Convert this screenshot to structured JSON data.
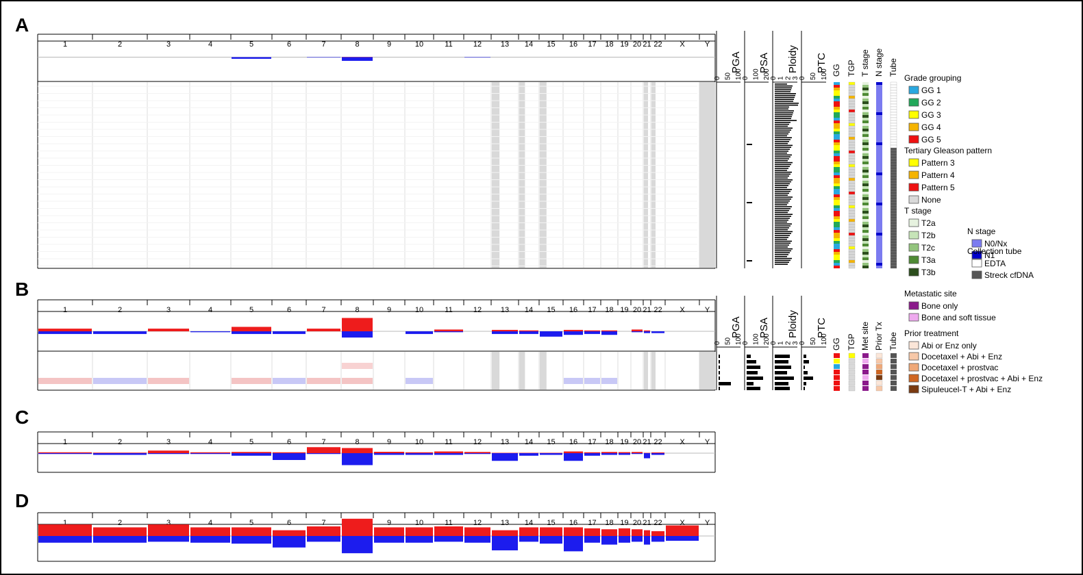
{
  "chromosomes": [
    "1",
    "2",
    "3",
    "4",
    "5",
    "6",
    "7",
    "8",
    "9",
    "10",
    "11",
    "12",
    "13",
    "14",
    "15",
    "16",
    "17",
    "18",
    "19",
    "20",
    "21",
    "22",
    "X",
    "Y"
  ],
  "panels": [
    {
      "id": "A",
      "letter": "A"
    },
    {
      "id": "B",
      "letter": "B"
    },
    {
      "id": "C",
      "letter": "C"
    },
    {
      "id": "D",
      "letter": "D"
    }
  ],
  "tracks": {
    "pga": {
      "label": "PGA",
      "ticks": [
        "0",
        "50",
        "100"
      ]
    },
    "psa": {
      "label": "PSA",
      "ticks": [
        "0",
        "100",
        "200"
      ]
    },
    "ploidy": {
      "label": "Ploidy",
      "ticks": [
        "0",
        "1",
        "2",
        "3"
      ]
    },
    "ptc": {
      "label": "PTC",
      "ticks": [
        "0",
        "50",
        "100"
      ]
    },
    "annotation_labels_A": [
      "GG",
      "TGP",
      "T stage",
      "N stage",
      "Tube"
    ],
    "annotation_labels_B": [
      "GG",
      "TGP",
      "Met site",
      "Prior Tx",
      "Tube"
    ]
  },
  "colors": {
    "gain": "#ee1c1c",
    "loss": "#1c1cee",
    "baseline": "#b8b8b8",
    "excluded_chrom": "#d9d9d9"
  },
  "legends_A": [
    {
      "title": "Grade grouping",
      "items": [
        {
          "label": "GG 1",
          "color": "#2aa8e0"
        },
        {
          "label": "GG 2",
          "color": "#22a85a"
        },
        {
          "label": "GG 3",
          "color": "#ffff00"
        },
        {
          "label": "GG 4",
          "color": "#f5b400"
        },
        {
          "label": "GG 5",
          "color": "#ee1111"
        }
      ]
    },
    {
      "title": "Tertiary Gleason pattern",
      "items": [
        {
          "label": "Pattern 3",
          "color": "#ffff00"
        },
        {
          "label": "Pattern 4",
          "color": "#f5b400"
        },
        {
          "label": "Pattern 5",
          "color": "#ee1111"
        },
        {
          "label": "None",
          "color": "#d9d9d9"
        }
      ]
    },
    {
      "title": "T stage",
      "items": [
        {
          "label": "T2a",
          "color": "#e6f2df"
        },
        {
          "label": "T2b",
          "color": "#c6e4b8"
        },
        {
          "label": "T2c",
          "color": "#93c47d"
        },
        {
          "label": "T3a",
          "color": "#4e8a34"
        },
        {
          "label": "T3b",
          "color": "#2b4e1c"
        }
      ]
    },
    {
      "title": "N stage",
      "items": [
        {
          "label": "N0/Nx",
          "color": "#7b7bf0"
        },
        {
          "label": "N1",
          "color": "#0000cc"
        }
      ]
    },
    {
      "title": "Collection tube",
      "items": [
        {
          "label": "EDTA",
          "color": "#ffffff"
        },
        {
          "label": "Streck cfDNA",
          "color": "#555555"
        }
      ]
    }
  ],
  "legends_B": [
    {
      "title": "Metastatic site",
      "items": [
        {
          "label": "Bone only",
          "color": "#8b1a8b"
        },
        {
          "label": "Bone and soft tissue",
          "color": "#eeaaee"
        }
      ]
    },
    {
      "title": "Prior treatment",
      "items": [
        {
          "label": "Abi or Enz only",
          "color": "#fbe6d8"
        },
        {
          "label": "Docetaxel + Abi + Enz",
          "color": "#f7c8a8"
        },
        {
          "label": "Docetaxel + prostvac",
          "color": "#efa878"
        },
        {
          "label": "Docetaxel + prostvac + Abi + Enz",
          "color": "#cf6622"
        },
        {
          "label": "Sipuleucel-T + Abi + Enz",
          "color": "#7a3a10"
        }
      ]
    }
  ],
  "chart_data": [
    {
      "type": "area",
      "panel": "A",
      "description_source": "summary CNA frequency profile (gain above, loss below baseline) plus per-sample heatmap",
      "ylim": [
        -1,
        1
      ],
      "gain": [
        0,
        0,
        0,
        0,
        0,
        0,
        0,
        0.01,
        0,
        0,
        0,
        0,
        0,
        0,
        0,
        0,
        0,
        0,
        0,
        0,
        0,
        0,
        0,
        0
      ],
      "loss": [
        0,
        0,
        0,
        0,
        0.08,
        0,
        0.02,
        0.18,
        0,
        0,
        0,
        0.02,
        0,
        0,
        0,
        0,
        0,
        0,
        0,
        0,
        0,
        0,
        0,
        0
      ],
      "excluded_chromosomes": [
        "13",
        "14",
        "15",
        "21",
        "22",
        "Y"
      ]
    },
    {
      "type": "area",
      "panel": "B",
      "ylim": [
        -1,
        1
      ],
      "gain": [
        0.15,
        0,
        0.15,
        0,
        0.25,
        0,
        0.15,
        0.75,
        0,
        0,
        0.1,
        0,
        0.08,
        0.05,
        0,
        0.08,
        0.05,
        0.05,
        0,
        0.1,
        0.05,
        0,
        0,
        0
      ],
      "loss": [
        0.15,
        0.15,
        0,
        0.05,
        0.15,
        0.15,
        0,
        0.35,
        0,
        0.15,
        0.05,
        0,
        0.15,
        0.15,
        0.3,
        0.2,
        0.15,
        0.2,
        0,
        0.05,
        0.1,
        0.1,
        0,
        0
      ],
      "excluded_chromosomes": [
        "13",
        "14",
        "15",
        "21",
        "22",
        "Y"
      ]
    },
    {
      "type": "area",
      "panel": "C",
      "ylim": [
        -1,
        1
      ],
      "gain": [
        0.05,
        0.03,
        0.15,
        0.05,
        0.07,
        0.05,
        0.35,
        0.3,
        0.08,
        0.05,
        0.1,
        0.07,
        0.02,
        0.02,
        0.02,
        0.1,
        0.05,
        0.07,
        0.06,
        0.07,
        0.02,
        0.04,
        0,
        0
      ],
      "loss": [
        0.05,
        0.1,
        0.05,
        0.05,
        0.15,
        0.4,
        0.05,
        0.7,
        0.1,
        0.1,
        0.1,
        0.05,
        0.45,
        0.15,
        0.1,
        0.45,
        0.15,
        0.1,
        0.1,
        0.05,
        0.3,
        0.1,
        0,
        0
      ]
    },
    {
      "type": "area",
      "panel": "D",
      "ylim": [
        -1,
        1
      ],
      "gain": [
        0.6,
        0.45,
        0.6,
        0.45,
        0.45,
        0.3,
        0.5,
        0.9,
        0.45,
        0.45,
        0.5,
        0.45,
        0.3,
        0.45,
        0.45,
        0.45,
        0.4,
        0.35,
        0.4,
        0.35,
        0.3,
        0.25,
        0.55,
        0
      ],
      "loss": [
        0.35,
        0.35,
        0.3,
        0.35,
        0.4,
        0.6,
        0.3,
        0.9,
        0.35,
        0.35,
        0.3,
        0.35,
        0.75,
        0.3,
        0.4,
        0.8,
        0.35,
        0.45,
        0.35,
        0.3,
        0.45,
        0.3,
        0.25,
        0
      ]
    }
  ]
}
